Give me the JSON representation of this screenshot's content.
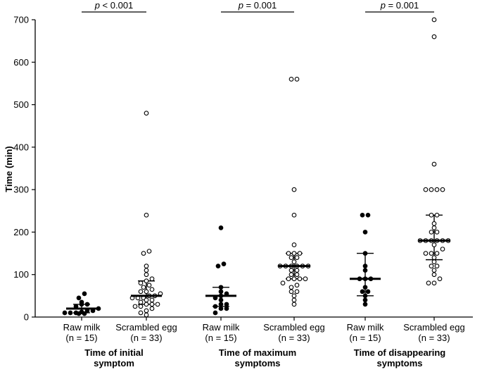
{
  "chart_data": {
    "type": "scatter",
    "ylabel": "Time (min)",
    "ylim": [
      0,
      700
    ],
    "y_ticks": [
      "0",
      "100",
      "200",
      "300",
      "400",
      "500",
      "600",
      "700"
    ],
    "groups": [
      {
        "label": "Time of initial symptom",
        "label_lines": [
          "Time of initial",
          "symptom"
        ],
        "p_italic": "p",
        "p_rest": " < 0.001",
        "series": [
          {
            "label_lines": [
              "Raw milk",
              "(n = 15)"
            ],
            "filled": true,
            "median": 20,
            "q1": 10,
            "q3": 30,
            "values": [
              55,
              45,
              35,
              30,
              30,
              25,
              20,
              15,
              15,
              12,
              10,
              10,
              10,
              8,
              8
            ]
          },
          {
            "label_lines": [
              "Scrambled egg",
              "(n = 33)"
            ],
            "filled": false,
            "median": 50,
            "q1": 30,
            "q3": 85,
            "values": [
              480,
              240,
              155,
              150,
              120,
              110,
              100,
              90,
              85,
              80,
              75,
              70,
              65,
              60,
              60,
              55,
              50,
              50,
              45,
              45,
              45,
              40,
              40,
              35,
              30,
              30,
              30,
              25,
              25,
              20,
              15,
              10,
              5
            ]
          }
        ]
      },
      {
        "label": "Time of maximum symptoms",
        "label_lines": [
          "Time of maximum",
          "symptoms"
        ],
        "p_italic": "p",
        "p_rest": " = 0.001",
        "series": [
          {
            "label_lines": [
              "Raw milk",
              "(n = 15)"
            ],
            "filled": true,
            "median": 50,
            "q1": 25,
            "q3": 70,
            "values": [
              210,
              125,
              120,
              70,
              60,
              55,
              50,
              45,
              40,
              30,
              30,
              25,
              20,
              20,
              10
            ]
          },
          {
            "label_lines": [
              "Scrambled egg",
              "(n = 33)"
            ],
            "filled": false,
            "median": 120,
            "q1": 90,
            "q3": 150,
            "values": [
              560,
              560,
              300,
              240,
              170,
              150,
              150,
              150,
              140,
              140,
              130,
              120,
              120,
              120,
              120,
              120,
              120,
              110,
              110,
              100,
              100,
              90,
              90,
              90,
              90,
              80,
              75,
              70,
              60,
              60,
              50,
              40,
              30
            ]
          }
        ]
      },
      {
        "label": "Time of disappearing symptoms",
        "label_lines": [
          "Time of disappearing",
          "symptoms"
        ],
        "p_italic": "p",
        "p_rest": " = 0.001",
        "series": [
          {
            "label_lines": [
              "Raw milk",
              "(n = 15)"
            ],
            "filled": true,
            "median": 90,
            "q1": 50,
            "q3": 150,
            "values": [
              240,
              240,
              200,
              150,
              120,
              110,
              90,
              90,
              90,
              70,
              60,
              60,
              50,
              40,
              30
            ]
          },
          {
            "label_lines": [
              "Scrambled egg",
              "(n = 33)"
            ],
            "filled": false,
            "median": 180,
            "q1": 135,
            "q3": 240,
            "values": [
              700,
              660,
              360,
              300,
              300,
              300,
              300,
              240,
              240,
              220,
              210,
              200,
              200,
              180,
              180,
              180,
              180,
              180,
              180,
              170,
              160,
              150,
              150,
              150,
              140,
              130,
              120,
              120,
              110,
              100,
              90,
              80,
              80
            ]
          }
        ]
      }
    ]
  }
}
